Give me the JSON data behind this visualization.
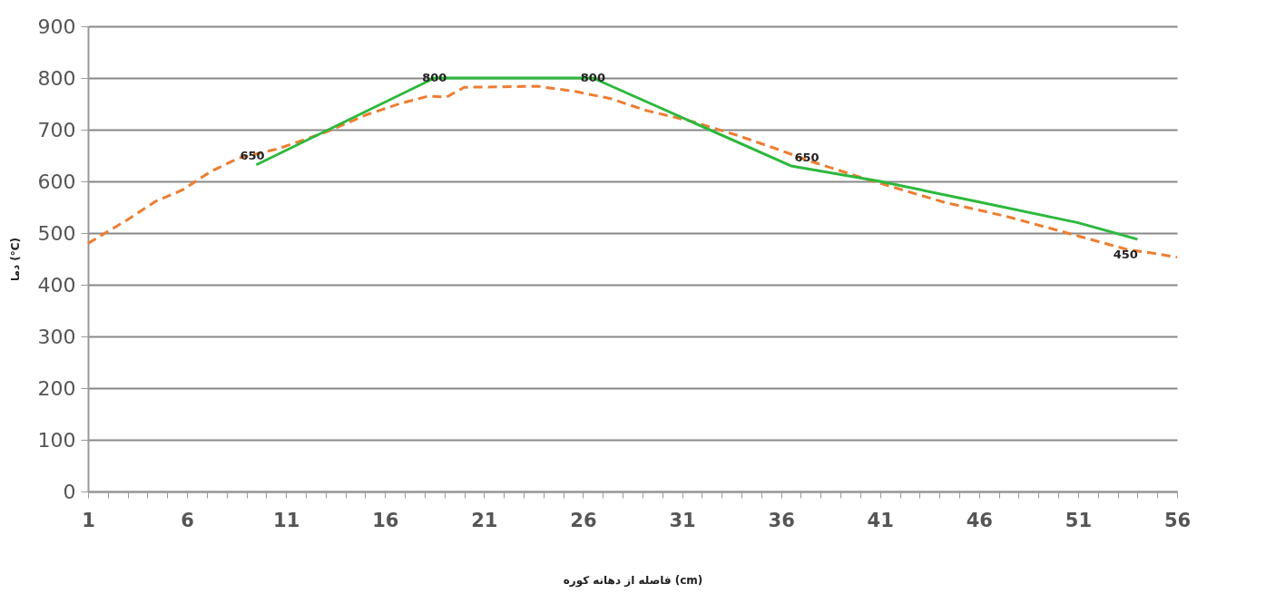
{
  "chart_data": {
    "type": "line",
    "xlabel": "فاصله از دهانه کوره (cm)",
    "ylabel": "دما (°C)",
    "xlim": [
      1,
      56
    ],
    "xticks": [
      1,
      {
        "value": 2,
        "label": null
      },
      {
        "value": 3,
        "label": null
      },
      {
        "value": 4,
        "label": null
      },
      {
        "value": 5,
        "label": null
      },
      6,
      {
        "value": 7,
        "label": null
      },
      {
        "value": 8,
        "label": null
      },
      {
        "value": 9,
        "label": null
      },
      {
        "value": 10,
        "label": null
      },
      11,
      {
        "value": 12,
        "label": null
      },
      {
        "value": 13,
        "label": null
      },
      {
        "value": 14,
        "label": null
      },
      {
        "value": 15,
        "label": null
      },
      16,
      {
        "value": 17,
        "label": null
      },
      {
        "value": 18,
        "label": null
      },
      {
        "value": 19,
        "label": null
      },
      {
        "value": 20,
        "label": null
      },
      21,
      {
        "value": 22,
        "label": null
      },
      {
        "value": 23,
        "label": null
      },
      {
        "value": 24,
        "label": null
      },
      {
        "value": 25,
        "label": null
      },
      26,
      {
        "value": 27,
        "label": null
      },
      {
        "value": 28,
        "label": null
      },
      {
        "value": 29,
        "label": null
      },
      {
        "value": 30,
        "label": null
      },
      31,
      {
        "value": 32,
        "label": null
      },
      {
        "value": 33,
        "label": null
      },
      {
        "value": 34,
        "label": null
      },
      {
        "value": 35,
        "label": null
      },
      36,
      {
        "value": 37,
        "label": null
      },
      {
        "value": 38,
        "label": null
      },
      {
        "value": 39,
        "label": null
      },
      {
        "value": 40,
        "label": null
      },
      41,
      {
        "value": 42,
        "label": null
      },
      {
        "value": 43,
        "label": null
      },
      {
        "value": 44,
        "label": null
      },
      {
        "value": 45,
        "label": null
      },
      46,
      {
        "value": 47,
        "label": null
      },
      {
        "value": 48,
        "label": null
      },
      {
        "value": 49,
        "label": null
      },
      {
        "value": 50,
        "label": null
      },
      51,
      {
        "value": 52,
        "label": null
      },
      {
        "value": 53,
        "label": null
      },
      {
        "value": 54,
        "label": null
      },
      {
        "value": 55,
        "label": null
      },
      56
    ],
    "ylim": [
      0,
      900
    ],
    "yticks": [
      0,
      100,
      200,
      300,
      400,
      500,
      600,
      700,
      800,
      900
    ],
    "grid": "y",
    "marker": "none",
    "series": [
      {
        "color": "#ed7d31",
        "line_style": "dashed",
        "x": [
          1,
          3,
          4.4,
          5.8,
          7.2,
          8.6,
          10.6,
          13.2,
          15,
          16.8,
          18.2,
          19.1,
          20,
          23.7,
          25.6,
          27.4,
          29.2,
          31.5,
          33.8,
          35.9,
          37.4,
          40.5,
          44.2,
          47.4,
          49.8,
          51.5,
          53.5,
          54.8,
          56
        ],
        "values": [
          480,
          526,
          561,
          584,
          619,
          645,
          663,
          698,
          728,
          751,
          765,
          763,
          782,
          784,
          774,
          760,
          737,
          716,
          689,
          661,
          640,
          602,
          560,
          532,
          507,
          489,
          468,
          461,
          453
        ]
      },
      {
        "color": "#2db83d",
        "line_style": "solid",
        "x": [
          9.5,
          18.5,
          26.5,
          36.5,
          41,
          46,
          51,
          54
        ],
        "values": [
          632,
          800,
          800,
          630,
          600,
          560,
          520,
          488
        ]
      }
    ],
    "annotations": [
      {
        "text": "650",
        "x": 9.3,
        "y": 650
      },
      {
        "text": "800",
        "x": 18.5,
        "y": 800
      },
      {
        "text": "800",
        "x": 26.5,
        "y": 800
      },
      {
        "text": "650",
        "x": 37.3,
        "y": 645
      },
      {
        "text": "450",
        "x": 53.4,
        "y": 458
      }
    ]
  }
}
